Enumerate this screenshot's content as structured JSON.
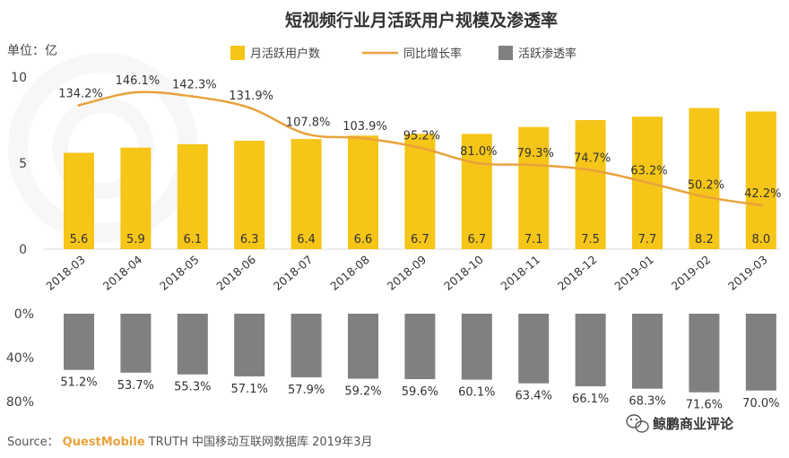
{
  "chart_title": "短视频行业月活跃用户规模及渗透率",
  "unit_label": "单位：亿",
  "colors": {
    "bar": "#f5c518",
    "line": "#e8a23c",
    "penetration": "#808080",
    "brand": "#e8a23c"
  },
  "legend": {
    "items": [
      "月活跃用户数",
      "同比增长率",
      "活跃渗透率"
    ]
  },
  "footer": {
    "source_prefix": "Source：",
    "source_brand": "QuestMobile",
    "source_text": "TRUTH 中国移动互联网数据库 2019年3月",
    "watermark": "鲸鹏商业评论",
    "watermark_icon": "wechat-icon"
  },
  "chart_data": [
    {
      "type": "bar",
      "title": "短视频行业月活跃用户规模及渗透率",
      "ylabel": "单位：亿",
      "categories": [
        "2018-03",
        "2018-04",
        "2018-05",
        "2018-06",
        "2018-07",
        "2018-08",
        "2018-09",
        "2018-10",
        "2018-11",
        "2018-12",
        "2019-01",
        "2019-02",
        "2019-03"
      ],
      "series": [
        {
          "name": "月活跃用户数",
          "type": "bar",
          "values": [
            5.6,
            5.9,
            6.1,
            6.3,
            6.4,
            6.6,
            6.7,
            6.7,
            7.1,
            7.5,
            7.7,
            8.2,
            8.0
          ],
          "labels": [
            "5.6",
            "5.9",
            "6.1",
            "6.3",
            "6.4",
            "6.6",
            "6.7",
            "6.7",
            "7.1",
            "7.5",
            "7.7",
            "8.2",
            "8.0"
          ]
        },
        {
          "name": "同比增长率",
          "type": "line",
          "values": [
            134.2,
            146.1,
            142.3,
            131.9,
            107.8,
            103.9,
            95.2,
            81.0,
            79.3,
            74.7,
            63.2,
            50.2,
            42.2
          ],
          "labels": [
            "134.2%",
            "146.1%",
            "142.3%",
            "131.9%",
            "107.8%",
            "103.9%",
            "95.2%",
            "81.0%",
            "79.3%",
            "74.7%",
            "63.2%",
            "50.2%",
            "42.2%"
          ]
        }
      ],
      "yticks": [
        "0",
        "5",
        "10"
      ],
      "ylim": [
        0,
        10
      ],
      "legend_position": "top",
      "grid": false
    },
    {
      "type": "bar",
      "orientation": "downward",
      "categories": [
        "2018-03",
        "2018-04",
        "2018-05",
        "2018-06",
        "2018-07",
        "2018-08",
        "2018-09",
        "2018-10",
        "2018-11",
        "2018-12",
        "2019-01",
        "2019-02",
        "2019-03"
      ],
      "series": [
        {
          "name": "活跃渗透率",
          "values": [
            51.2,
            53.7,
            55.3,
            57.1,
            57.9,
            59.2,
            59.6,
            60.1,
            63.4,
            66.1,
            68.3,
            71.6,
            70.0
          ],
          "labels": [
            "51.2%",
            "53.7%",
            "55.3%",
            "57.1%",
            "57.9%",
            "59.2%",
            "59.6%",
            "60.1%",
            "63.4%",
            "66.1%",
            "68.3%",
            "71.6%",
            "70.0%"
          ]
        }
      ],
      "yticks": [
        "0%",
        "40%",
        "80%"
      ],
      "ylim": [
        0,
        80
      ],
      "grid": false
    }
  ]
}
